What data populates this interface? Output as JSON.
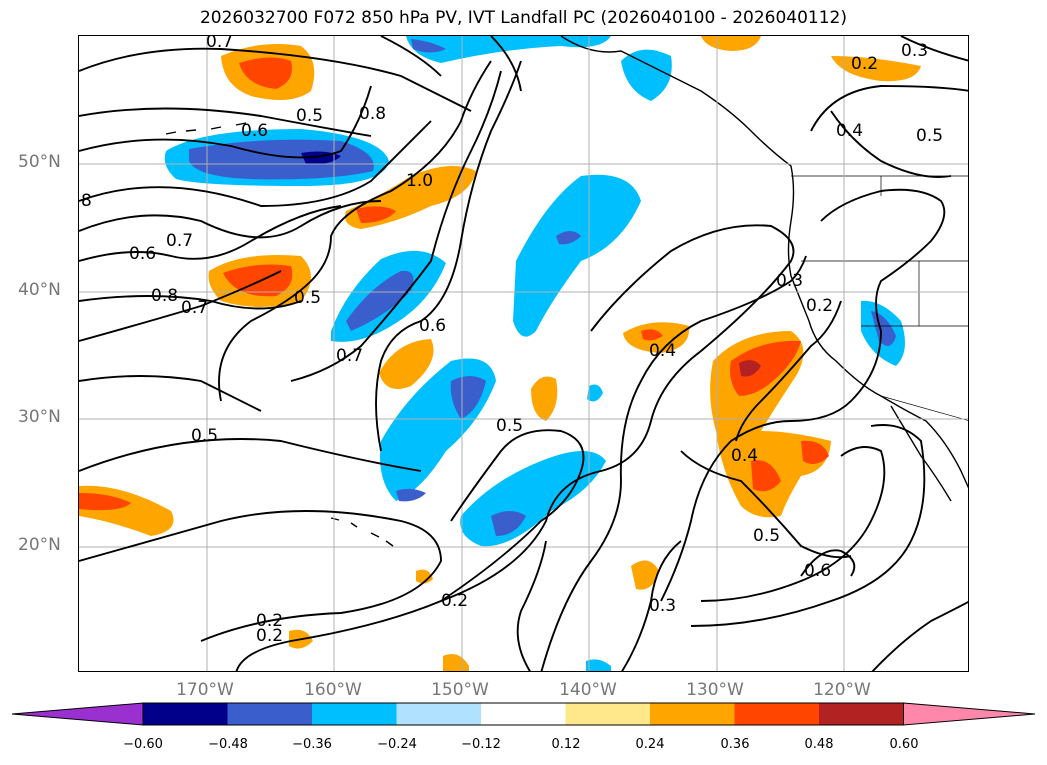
{
  "title": "2026032700 F072 850 hPa PV, IVT Landfall PC (2026040100 - 2026040112)",
  "lat_labels": [
    "50°N",
    "40°N",
    "30°N",
    "20°N"
  ],
  "lon_labels": [
    "170°W",
    "160°W",
    "150°W",
    "140°W",
    "130°W",
    "120°W"
  ],
  "colorbar": {
    "ticks": [
      "−0.60",
      "−0.48",
      "−0.36",
      "−0.24",
      "−0.12",
      "0.12",
      "0.24",
      "0.36",
      "0.48",
      "0.60"
    ],
    "colors": [
      "#9b30d0",
      "#00008b",
      "#3a5fcd",
      "#00bfff",
      "#b0e2ff",
      "#ffffff",
      "#ffe88c",
      "#ffa500",
      "#ff4500",
      "#b22222",
      "#ff88aa"
    ]
  },
  "contour_labels": [
    "0.7",
    "0.2",
    "0.5",
    "0.8",
    "0.6",
    "1.0",
    "8",
    "0.6",
    "0.7",
    "0.8",
    "0.7",
    "0.5",
    "0.6",
    "0.7",
    "0.5",
    "0.5",
    "0.4",
    "0.3",
    "0.4",
    "0.5",
    "0.3",
    "0.2",
    "0.4",
    "0.5",
    "0.6",
    "0.3",
    "0.2",
    "0.2",
    "0.2"
  ],
  "colors": {
    "axis_label": "#777777",
    "contour": "#000000",
    "grid": "#b0b0b0"
  }
}
